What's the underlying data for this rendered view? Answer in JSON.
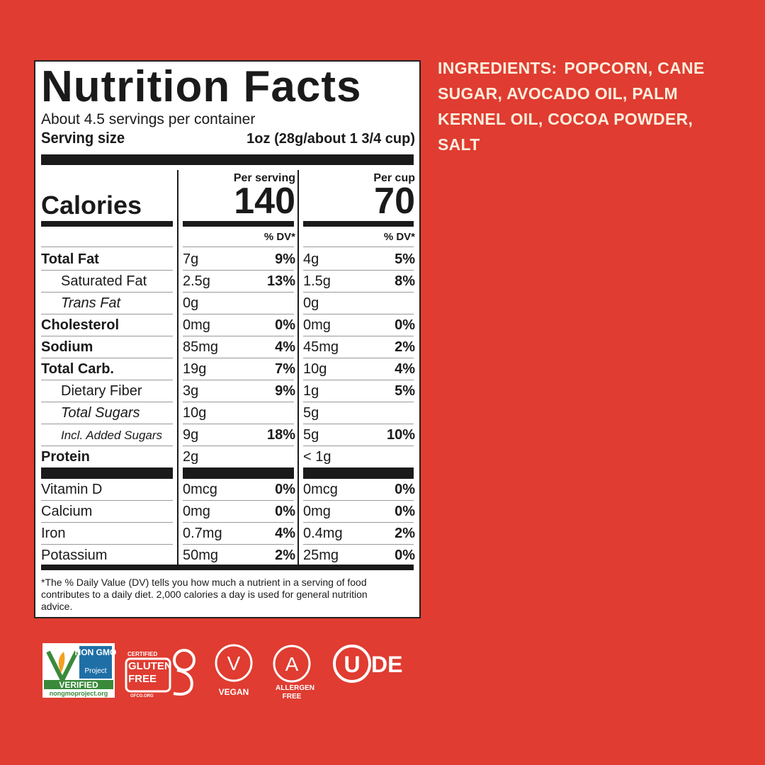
{
  "label": {
    "title": "Nutrition Facts",
    "servings": "About 4.5 servings per container",
    "serving_size_label": "Serving size",
    "serving_size": "1oz (28g/about 1 3/4 cup)",
    "calories_label": "Calories",
    "columns": [
      {
        "heading": "Per serving",
        "calories": 140,
        "dv_heading": "% DV*"
      },
      {
        "heading": "Per cup",
        "calories": 70,
        "dv_heading": "% DV*"
      }
    ],
    "nutrients": [
      {
        "name": "Total Fat",
        "style": "bold",
        "amounts": [
          "7g",
          "4g"
        ],
        "dv": [
          "9%",
          "5%"
        ]
      },
      {
        "name": "Saturated Fat",
        "style": "indent",
        "amounts": [
          "2.5g",
          "1.5g"
        ],
        "dv": [
          "13%",
          "8%"
        ]
      },
      {
        "name": "Trans Fat",
        "style": "indent-italic",
        "amounts": [
          "0g",
          "0g"
        ]
      },
      {
        "name": "Cholesterol",
        "style": "bold",
        "amounts": [
          "0mg",
          "0mg"
        ],
        "dv": [
          "0%",
          "0%"
        ]
      },
      {
        "name": "Sodium",
        "style": "bold",
        "amounts": [
          "85mg",
          "45mg"
        ],
        "dv": [
          "4%",
          "2%"
        ]
      },
      {
        "name": "Total Carb.",
        "style": "bold",
        "amounts": [
          "19g",
          "10g"
        ],
        "dv": [
          "7%",
          "4%"
        ]
      },
      {
        "name": "Dietary Fiber",
        "style": "indent",
        "amounts": [
          "3g",
          "1g"
        ],
        "dv": [
          "9%",
          "5%"
        ]
      },
      {
        "name": "Total Sugars",
        "style": "indent-italic",
        "amounts": [
          "10g",
          "5g"
        ]
      },
      {
        "name": "Incl. Added Sugars",
        "style": "indent-italic-small",
        "amounts": [
          "9g",
          "5g"
        ],
        "dv": [
          "18%",
          "10%"
        ]
      },
      {
        "name": "Protein",
        "style": "bold",
        "amounts": [
          "2g",
          "< 1g"
        ]
      }
    ],
    "vitamins": [
      {
        "name": "Vitamin D",
        "style": "plain",
        "amounts": [
          "0mcg",
          "0mcg"
        ],
        "dv": [
          "0%",
          "0%"
        ]
      },
      {
        "name": "Calcium",
        "style": "plain",
        "amounts": [
          "0mg",
          "0mg"
        ],
        "dv": [
          "0%",
          "0%"
        ]
      },
      {
        "name": "Iron",
        "style": "plain",
        "amounts": [
          "0.7mg",
          "0.4mg"
        ],
        "dv": [
          "4%",
          "2%"
        ]
      },
      {
        "name": "Potassium",
        "style": "plain",
        "amounts": [
          "50mg",
          "25mg"
        ],
        "dv": [
          "2%",
          "0%"
        ]
      }
    ],
    "footnote": "*The % Daily Value (DV) tells you how much a nutrient in a serving of food contributes to a daily diet. 2,000 calories a day is used for general nutrition advice."
  },
  "ingredients": {
    "label": "INGREDIENTS:",
    "text": "POPCORN, CANE SUGAR, AVOCADO OIL, PALM KERNEL OIL, COCOA POWDER, SALT"
  },
  "badges": {
    "nongmo": {
      "title": "NON GMO",
      "sub": "Project",
      "verified": "VERIFIED",
      "url": "nongmoproject.org"
    },
    "gluten": {
      "certified": "CERTIFIED",
      "name": "GLUTEN FREE",
      "url": "GFCO.ORG"
    },
    "vegan": {
      "letter": "V",
      "caption": "VEGAN"
    },
    "allergen": {
      "letter": "A",
      "caption": "ALLERGEN FREE"
    },
    "kosher": {
      "letter": "U",
      "suffix": "DE"
    }
  }
}
